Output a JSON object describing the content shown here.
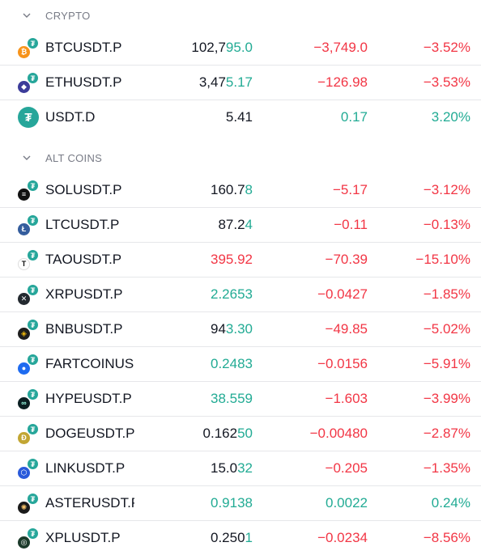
{
  "colors": {
    "up": "#22ab94",
    "down": "#f23645",
    "neutral": "#131722",
    "header": "#787b86"
  },
  "sections": [
    {
      "title": "CRYPTO",
      "rows": [
        {
          "symbol": "BTCUSDT.P",
          "icon": "bitcoin-icon",
          "coin_color": "#f7931a",
          "coin_glyph": "₿",
          "price_main": "102,7",
          "price_tail": "95.0",
          "price_main_color": "neutral",
          "price_tail_color": "up",
          "change": "−3,749.0",
          "change_pct": "−3.52%",
          "dir": "down"
        },
        {
          "symbol": "ETHUSDT.P",
          "icon": "ethereum-icon",
          "coin_color": "#3c3c9a",
          "coin_glyph": "◆",
          "price_main": "3,47",
          "price_tail": "5.17",
          "price_main_color": "neutral",
          "price_tail_color": "up",
          "change": "−126.98",
          "change_pct": "−3.53%",
          "dir": "down"
        },
        {
          "symbol": "USDT.D",
          "icon": "tether-icon",
          "big": true,
          "price_main": "5.41",
          "price_tail": "",
          "price_main_color": "neutral",
          "price_tail_color": "neutral",
          "change": "0.17",
          "change_pct": "3.20%",
          "dir": "up"
        }
      ]
    },
    {
      "title": "ALT COINS",
      "rows": [
        {
          "symbol": "SOLUSDT.P",
          "icon": "solana-icon",
          "coin_color": "#111111",
          "coin_glyph": "≡",
          "price_main": "160.7",
          "price_tail": "8",
          "price_main_color": "neutral",
          "price_tail_color": "up",
          "change": "−5.17",
          "change_pct": "−3.12%",
          "dir": "down"
        },
        {
          "symbol": "LTCUSDT.P",
          "icon": "litecoin-icon",
          "coin_color": "#345d9d",
          "coin_glyph": "Ł",
          "price_main": "87.2",
          "price_tail": "4",
          "price_main_color": "neutral",
          "price_tail_color": "up",
          "change": "−0.11",
          "change_pct": "−0.13%",
          "dir": "down"
        },
        {
          "symbol": "TAOUSDT.P",
          "icon": "bittensor-icon",
          "coin_color": "#ffffff",
          "coin_glyph": "T",
          "coin_text_dark": true,
          "price_main": "395.92",
          "price_tail": "",
          "price_main_color": "down",
          "price_tail_color": "down",
          "change": "−70.39",
          "change_pct": "−15.10%",
          "dir": "down"
        },
        {
          "symbol": "XRPUSDT.P",
          "icon": "xrp-icon",
          "coin_color": "#23292f",
          "coin_glyph": "✕",
          "price_main": "2.2653",
          "price_tail": "",
          "price_main_color": "up",
          "price_tail_color": "up",
          "change": "−0.0427",
          "change_pct": "−1.85%",
          "dir": "down"
        },
        {
          "symbol": "BNBUSDT.P",
          "icon": "bnb-icon",
          "coin_color": "#1e1e1e",
          "coin_glyph": "◈",
          "coin_glyph_color": "#f0b90b",
          "price_main": "94",
          "price_tail": "3.30",
          "price_main_color": "neutral",
          "price_tail_color": "up",
          "change": "−49.85",
          "change_pct": "−5.02%",
          "dir": "down"
        },
        {
          "symbol": "FARTCOINUSDT.P",
          "icon": "fartcoin-icon",
          "coin_color": "#1e6bf0",
          "coin_glyph": "●",
          "price_main": "0.2483",
          "price_tail": "",
          "price_main_color": "up",
          "price_tail_color": "up",
          "change": "−0.0156",
          "change_pct": "−5.91%",
          "dir": "down"
        },
        {
          "symbol": "HYPEUSDT.P",
          "icon": "hyperliquid-icon",
          "coin_color": "#0b1f22",
          "coin_glyph": "∞",
          "coin_glyph_color": "#97fce4",
          "price_main": "38.559",
          "price_tail": "",
          "price_main_color": "up",
          "price_tail_color": "up",
          "change": "−1.603",
          "change_pct": "−3.99%",
          "dir": "down"
        },
        {
          "symbol": "DOGEUSDT.P",
          "icon": "dogecoin-icon",
          "coin_color": "#c2a633",
          "coin_glyph": "Ð",
          "price_main": "0.162",
          "price_tail": "50",
          "price_main_color": "neutral",
          "price_tail_color": "up",
          "change": "−0.00480",
          "change_pct": "−2.87%",
          "dir": "down"
        },
        {
          "symbol": "LINKUSDT.P",
          "icon": "chainlink-icon",
          "coin_color": "#2a5ada",
          "coin_glyph": "⬡",
          "price_main": "15.0",
          "price_tail": "32",
          "price_main_color": "neutral",
          "price_tail_color": "up",
          "change": "−0.205",
          "change_pct": "−1.35%",
          "dir": "down"
        },
        {
          "symbol": "ASTERUSDT.P",
          "icon": "aster-icon",
          "coin_color": "#1a1a1a",
          "coin_glyph": "✺",
          "coin_glyph_color": "#f5c26b",
          "price_main": "0.9138",
          "price_tail": "",
          "price_main_color": "up",
          "price_tail_color": "up",
          "change": "0.0022",
          "change_pct": "0.24%",
          "dir": "up"
        },
        {
          "symbol": "XPLUSDT.P",
          "icon": "plasma-icon",
          "coin_color": "#1b3a2a",
          "coin_glyph": "◎",
          "price_main": "0.250",
          "price_tail": "1",
          "price_main_color": "neutral",
          "price_tail_color": "up",
          "change": "−0.0234",
          "change_pct": "−8.56%",
          "dir": "down"
        }
      ]
    }
  ]
}
